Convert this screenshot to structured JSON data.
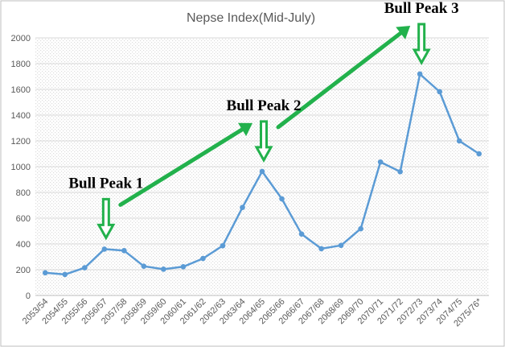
{
  "chart_data": {
    "type": "line",
    "title": "Nepse Index(Mid-July)",
    "xlabel": "",
    "ylabel": "",
    "ylim": [
      0,
      2000
    ],
    "yticks": [
      0,
      200,
      400,
      600,
      800,
      1000,
      1200,
      1400,
      1600,
      1800,
      2000
    ],
    "grid": true,
    "legend": "none",
    "categories": [
      "2053/54",
      "2054/55",
      "2055/56",
      "2056/57",
      "2057/58",
      "2058/59",
      "2059/60",
      "2060/61",
      "2061/62",
      "2062/63",
      "2063/64",
      "2064/65",
      "2065/66",
      "2066/67",
      "2067/68",
      "2068/69",
      "2069/70",
      "2070/71",
      "2071/72",
      "2072/73",
      "2073/74",
      "2074/75",
      "2075/76*"
    ],
    "series": [
      {
        "values": [
          176,
          163,
          215,
          360,
          348,
          227,
          204,
          223,
          287,
          386,
          683,
          963,
          750,
          477,
          363,
          389,
          518,
          1036,
          961,
          1719,
          1582,
          1200,
          1100
        ]
      }
    ],
    "annotations": [
      {
        "text": "Bull Peak 1",
        "category": "2056/57"
      },
      {
        "text": "Bull Peak 2",
        "category": "2064/65"
      },
      {
        "text": "Bull Peak 3",
        "category": "2072/73"
      }
    ],
    "colors": {
      "line": "#5b9bd5",
      "marker": "#5b9bd5",
      "arrow": "#22b14c",
      "grid": "#d9d9d9",
      "plot_pattern": "#e8e8e8",
      "frame": "#bfbfbf"
    }
  }
}
